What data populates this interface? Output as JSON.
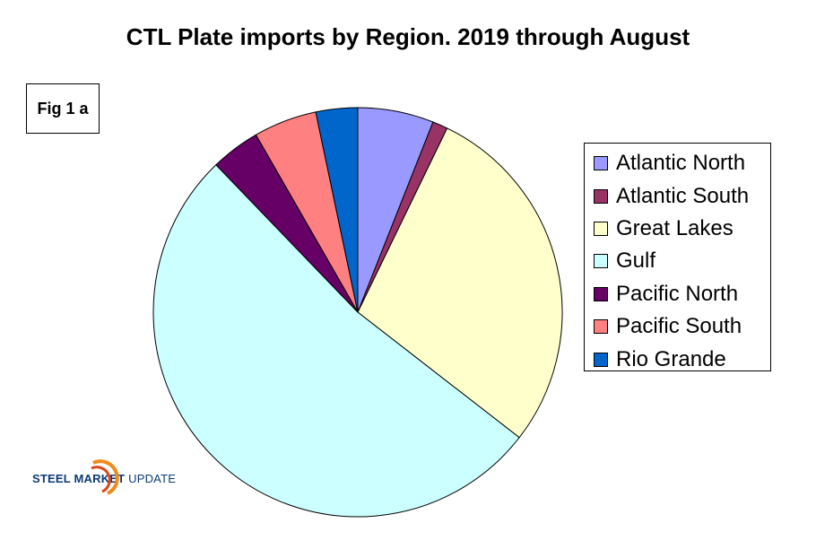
{
  "chart_data": {
    "type": "pie",
    "title": "CTL Plate imports by Region. 2019 through August",
    "annotation": "Fig 1 a",
    "legend_position": "right",
    "slices": [
      {
        "name": "Atlantic North",
        "value": 6.0,
        "color": "#9999ff"
      },
      {
        "name": "Atlantic South",
        "value": 1.2,
        "color": "#993366"
      },
      {
        "name": "Great Lakes",
        "value": 28.3,
        "color": "#ffffcc"
      },
      {
        "name": "Gulf",
        "value": 52.3,
        "color": "#ccffff"
      },
      {
        "name": "Pacific North",
        "value": 3.9,
        "color": "#660066"
      },
      {
        "name": "Pacific South",
        "value": 5.0,
        "color": "#ff8080"
      },
      {
        "name": "Rio Grande",
        "value": 3.3,
        "color": "#0066cc"
      }
    ]
  },
  "logo": {
    "part1": "STEEL",
    "part2": "MARKET",
    "part3": "UPDATE"
  }
}
